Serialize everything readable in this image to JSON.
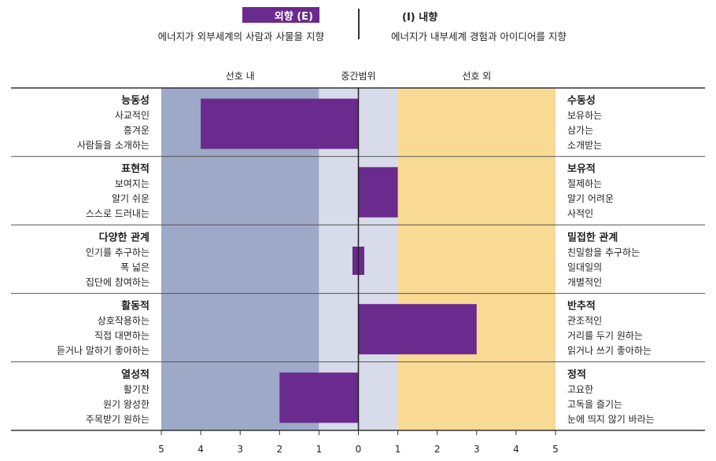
{
  "legend": {
    "e_label": "외향 (E)",
    "e_desc": "에너지가 외부세계의 사람과 사물을 지향",
    "i_label": "(I) 내향",
    "i_desc": "에너지가 내부세계 경험과 아이디어를 지향"
  },
  "colors": {
    "bar": "#6a2a8e",
    "preferred_zone": "#9da9c7",
    "mid_zone": "#d8dbea",
    "outside_zone": "#f8da94"
  },
  "chart_data": {
    "type": "bar",
    "orientation": "horizontal",
    "xlim": [
      -5,
      5
    ],
    "x_ticks": [
      "5",
      "4",
      "3",
      "2",
      "1",
      "0",
      "1",
      "2",
      "3",
      "4",
      "5"
    ],
    "zones": [
      {
        "label": "선호 내",
        "range": [
          -5,
          -1
        ]
      },
      {
        "label": "중간범위",
        "range": [
          -1,
          1
        ]
      },
      {
        "label": "선호 외",
        "range": [
          1,
          5
        ]
      }
    ],
    "facets": [
      {
        "left_title": "능동성",
        "left_items": [
          "사교적인",
          "흥겨운",
          "사람들을 소개하는"
        ],
        "right_title": "수동성",
        "right_items": [
          "보유하는",
          "삼가는",
          "소개받는"
        ],
        "value": -4
      },
      {
        "left_title": "표현적",
        "left_items": [
          "보여지는",
          "알기 쉬운",
          "스스로 드러내는"
        ],
        "right_title": "보유적",
        "right_items": [
          "절제하는",
          "알기 어려운",
          "사적인"
        ],
        "value": 1
      },
      {
        "left_title": "다양한 관계",
        "left_items": [
          "인기를 추구하는",
          "폭 넓은",
          "집단에 참여하는"
        ],
        "right_title": "밀접한 관계",
        "right_items": [
          "친밀함을 추구하는",
          "일대일의",
          "개별적인"
        ],
        "value": 0.15,
        "value_start": -0.15
      },
      {
        "left_title": "활동적",
        "left_items": [
          "상호작용하는",
          "직접 대면하는",
          "듣거나 말하기 좋아하는"
        ],
        "right_title": "반추적",
        "right_items": [
          "관조적인",
          "거리를 두기 원하는",
          "읽거나 쓰기 좋아하는"
        ],
        "value": 3
      },
      {
        "left_title": "열성적",
        "left_items": [
          "활기찬",
          "원기 왕성한",
          "주목받기 원하는"
        ],
        "right_title": "정적",
        "right_items": [
          "고요한",
          "고독을 즐기는",
          "눈에 띄지 않기 바라는"
        ],
        "value": -2
      }
    ]
  }
}
